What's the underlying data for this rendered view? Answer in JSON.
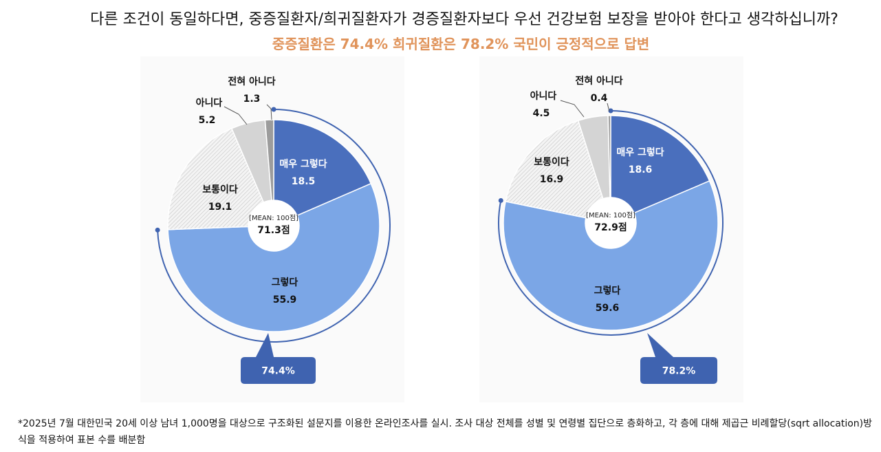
{
  "title": "다른 조건이 동일하다면, 중증질환자/희귀질환자가 경증질환자보다 우선 건강보험 보장을 받아야 한다고 생각하십니까?",
  "subtitle": "중증질환은 74.4% 희귀질환은 78.2% 국민이 긍정적으로 답변",
  "footnote": "*2025년 7월 대한민국 20세 이상 남녀 1,000명을 대상으로 구조화된 설문지를 이용한 온라인조사를 실시. 조사 대상 전체를 성별 및 연령별 집단으로 층화하고, 각 층에 대해 제곱근 비례할당(sqrt allocation)방식을 적용하여 표본 수를 배분함",
  "colors": {
    "매우 그렇다": "#4a6fbd",
    "그렇다": "#7ba6e6",
    "보통이다": "#e6e6e6",
    "아니다": "#d4d4d4",
    "전혀 아니다": "#9c9c9c",
    "accent": "#3f63b0",
    "subtitle": "#e0935a"
  },
  "chart_data": [
    {
      "type": "pie",
      "categories": [
        "매우 그렇다",
        "그렇다",
        "보통이다",
        "아니다",
        "전혀 아니다"
      ],
      "values": [
        18.5,
        55.9,
        19.1,
        5.2,
        1.3
      ],
      "center_label": "[MEAN: 100점]",
      "center_value": "71.3점",
      "positive_total": "74.4%"
    },
    {
      "type": "pie",
      "categories": [
        "매우 그렇다",
        "그렇다",
        "보통이다",
        "아니다",
        "전혀 아니다"
      ],
      "values": [
        18.6,
        59.6,
        16.9,
        4.5,
        0.4
      ],
      "center_label": "[MEAN: 100점]",
      "center_value": "72.9점",
      "positive_total": "78.2%"
    }
  ]
}
